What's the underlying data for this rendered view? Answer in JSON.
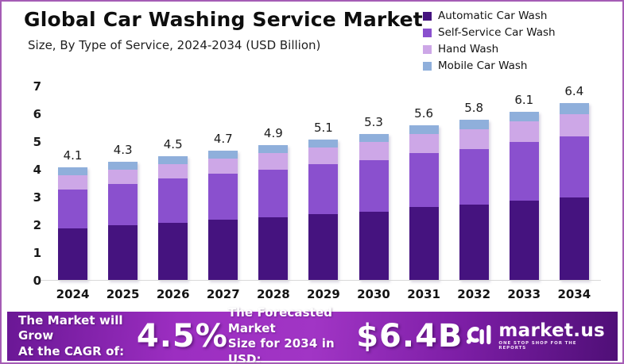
{
  "header": {
    "title": "Global Car Washing Service Market",
    "subtitle": "Size, By Type of Service, 2024-2034 (USD Billion)"
  },
  "chart_data": {
    "type": "bar",
    "stacked": true,
    "title": "Global Car Washing Service Market",
    "subtitle": "Size, By Type of Service, 2024-2034 (USD Billion)",
    "xlabel": "",
    "ylabel": "",
    "ylim": [
      0,
      7
    ],
    "yticks": [
      0,
      1,
      2,
      3,
      4,
      5,
      6,
      7
    ],
    "grid": false,
    "legend_position": "top-right",
    "categories": [
      "2024",
      "2025",
      "2026",
      "2027",
      "2028",
      "2029",
      "2030",
      "2031",
      "2032",
      "2033",
      "2034"
    ],
    "series": [
      {
        "name": "Automatic Car Wash",
        "color": "#45137f",
        "values": [
          1.9,
          2.0,
          2.1,
          2.2,
          2.3,
          2.4,
          2.5,
          2.65,
          2.75,
          2.9,
          3.0
        ]
      },
      {
        "name": "Self-Service Car Wash",
        "color": "#8a50ce",
        "values": [
          1.4,
          1.5,
          1.6,
          1.65,
          1.7,
          1.8,
          1.85,
          1.95,
          2.0,
          2.1,
          2.2
        ]
      },
      {
        "name": "Hand Wash",
        "color": "#cda7e7",
        "values": [
          0.5,
          0.5,
          0.5,
          0.55,
          0.6,
          0.6,
          0.65,
          0.7,
          0.7,
          0.75,
          0.8
        ]
      },
      {
        "name": "Mobile Car Wash",
        "color": "#8fafdb",
        "values": [
          0.3,
          0.3,
          0.3,
          0.3,
          0.3,
          0.3,
          0.3,
          0.3,
          0.35,
          0.35,
          0.4
        ]
      }
    ],
    "totals": [
      4.1,
      4.3,
      4.5,
      4.7,
      4.9,
      5.1,
      5.3,
      5.6,
      5.8,
      6.1,
      6.4
    ]
  },
  "banner": {
    "cagr_label_line1": "The Market will Grow",
    "cagr_label_line2": "At the CAGR of:",
    "cagr_value": "4.5%",
    "forecast_label_line1": "The Forecasted Market",
    "forecast_label_line2": "Size for 2034 in USD:",
    "forecast_value": "$6.4B",
    "logo_name": "market.us",
    "logo_tagline": "ONE STOP SHOP FOR THE REPORTS",
    "accent_color": "#a135c5"
  }
}
